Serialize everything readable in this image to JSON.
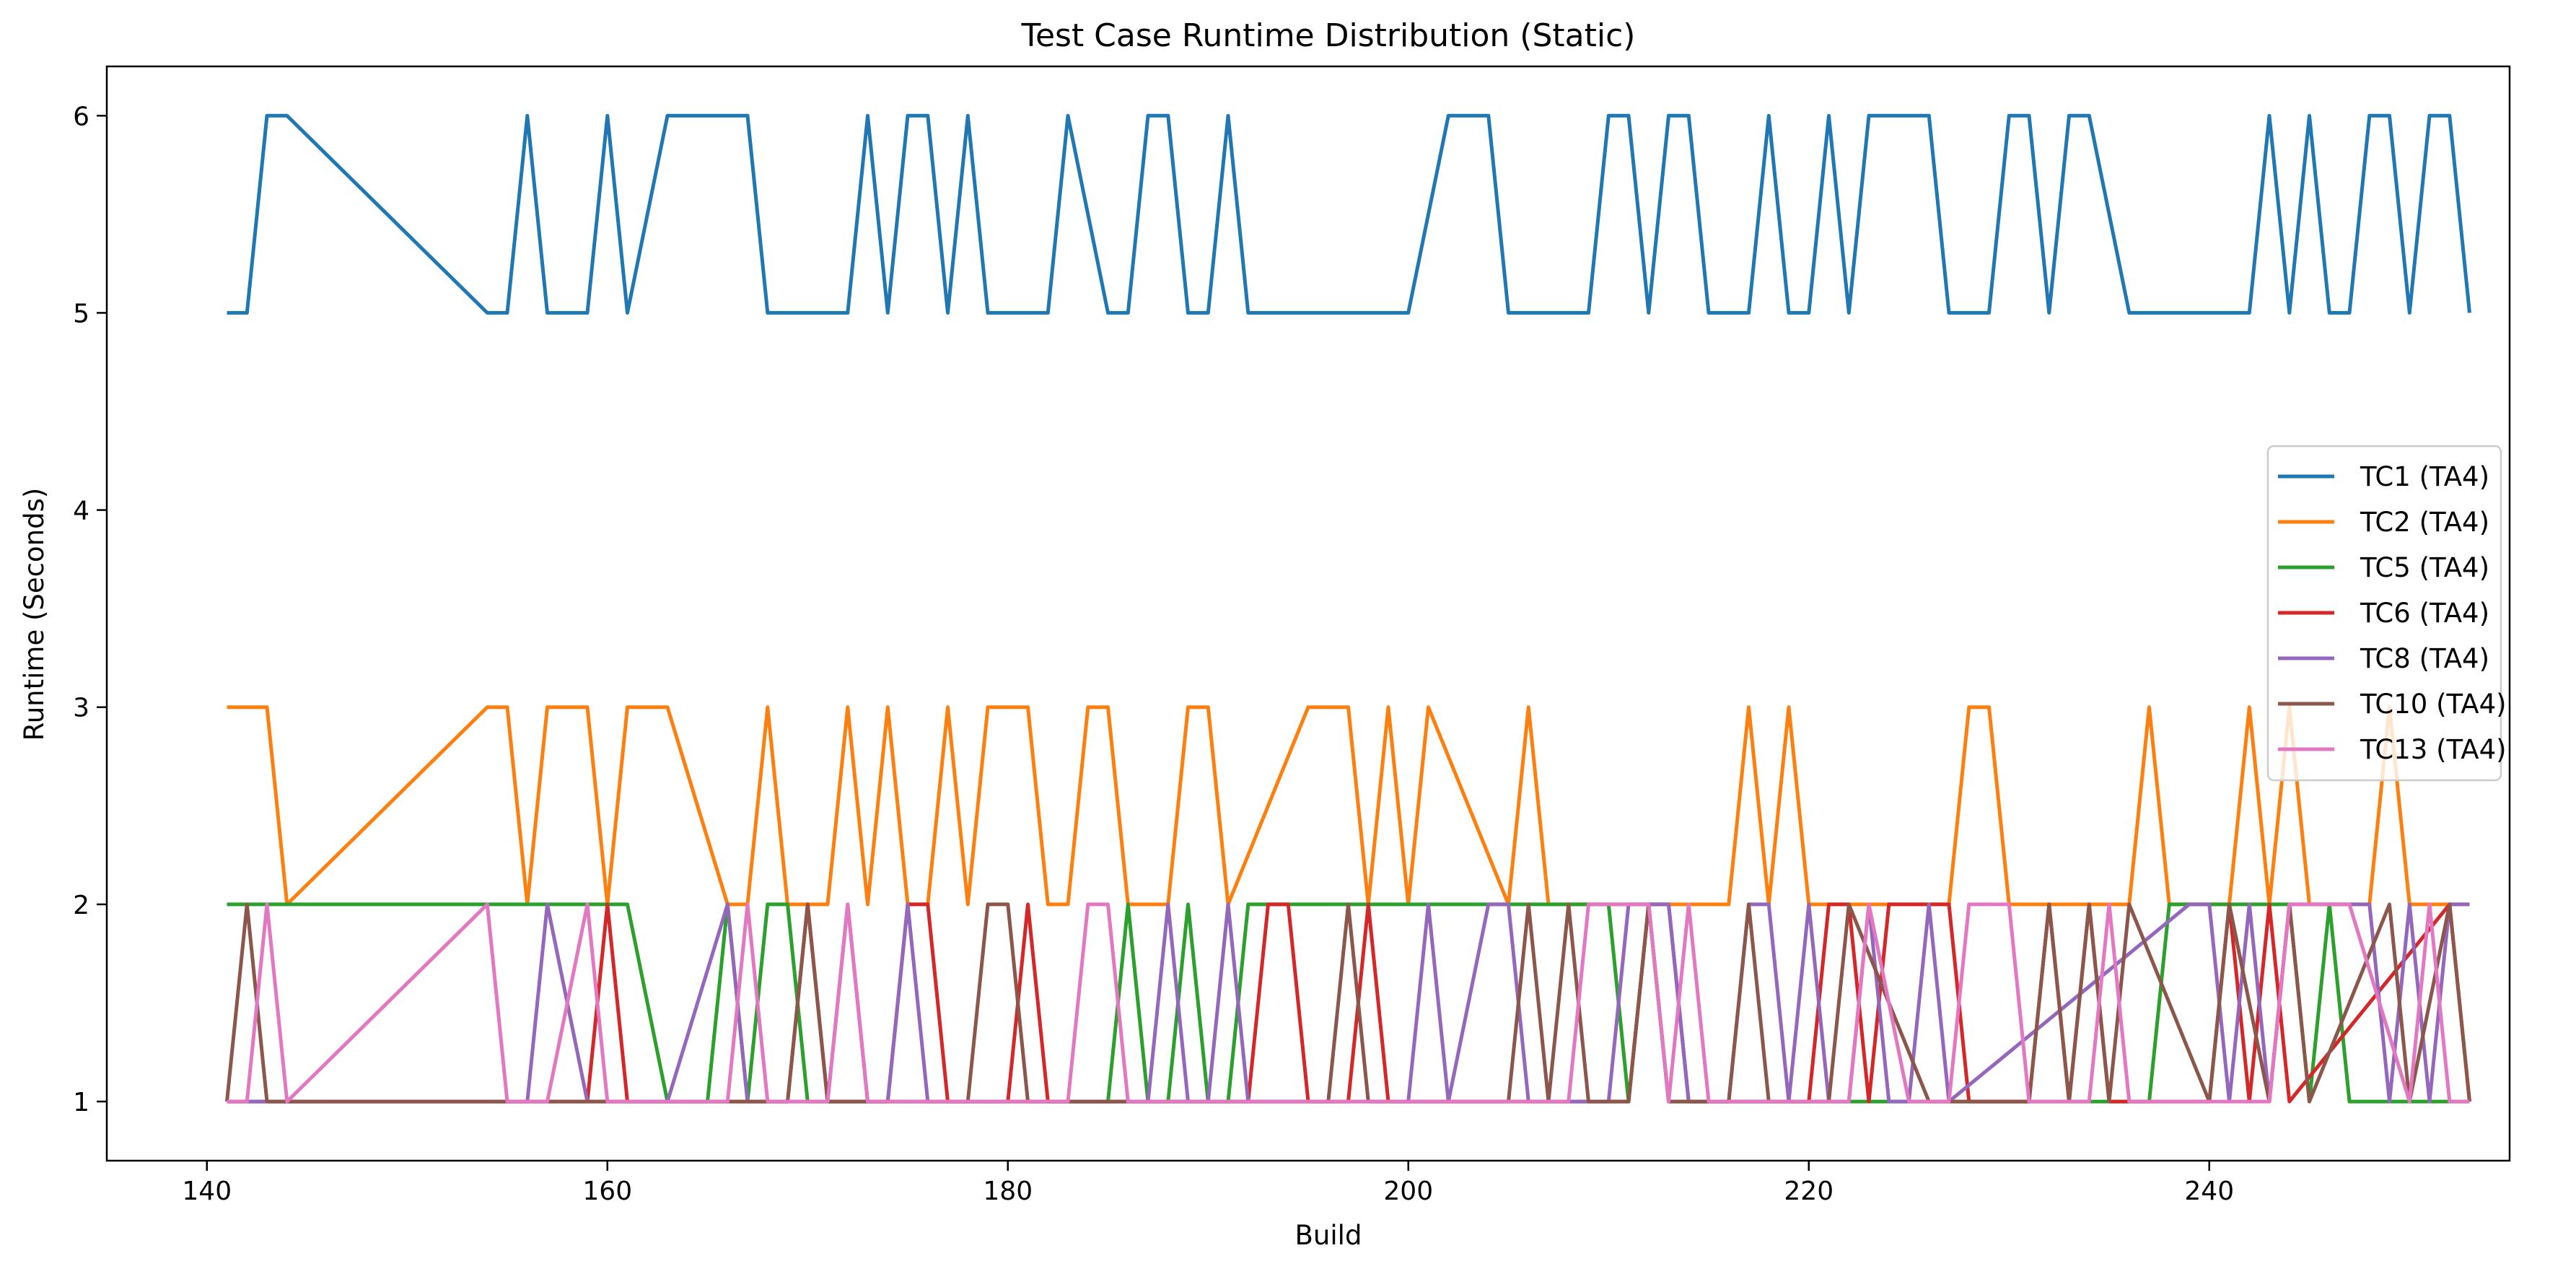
{
  "chart_data": {
    "type": "line",
    "title": "Test Case Runtime Distribution (Static)",
    "xlabel": "Build",
    "ylabel": "Runtime (Seconds)",
    "xlim": [
      135,
      255
    ],
    "ylim": [
      0.7,
      6.25
    ],
    "xticks": [
      140,
      160,
      180,
      200,
      220,
      240
    ],
    "yticks": [
      1,
      2,
      3,
      4,
      5,
      6
    ],
    "grid": false,
    "legend_position": "center-right",
    "series": [
      {
        "name": "TC1 (TA4)",
        "color": "#1f77b4",
        "x": [
          141,
          142,
          143,
          144,
          154,
          155,
          156,
          157,
          159,
          160,
          161,
          163,
          167,
          168,
          172,
          173,
          174,
          175,
          176,
          177,
          178,
          179,
          182,
          183,
          185,
          186,
          187,
          188,
          189,
          190,
          191,
          192,
          200,
          202,
          204,
          205,
          209,
          210,
          211,
          212,
          213,
          214,
          215,
          217,
          218,
          219,
          220,
          221,
          222,
          223,
          226,
          227,
          229,
          230,
          231,
          232,
          233,
          234,
          236,
          237,
          242,
          243,
          244,
          245,
          246,
          247,
          248,
          249,
          250,
          251,
          252,
          253
        ],
        "y": [
          5,
          5,
          6,
          6,
          5,
          5,
          6,
          5,
          5,
          6,
          5,
          6,
          6,
          5,
          5,
          6,
          5,
          6,
          6,
          5,
          6,
          5,
          5,
          6,
          5,
          5,
          6,
          6,
          5,
          5,
          6,
          5,
          5,
          6,
          6,
          5,
          5,
          6,
          6,
          5,
          6,
          6,
          5,
          5,
          6,
          5,
          5,
          6,
          5,
          6,
          6,
          5,
          5,
          6,
          6,
          5,
          6,
          6,
          5,
          5,
          5,
          6,
          5,
          6,
          5,
          5,
          6,
          6,
          5,
          6,
          6,
          5
        ]
      },
      {
        "name": "TC2 (TA4)",
        "color": "#ff7f0e",
        "x": [
          141,
          143,
          144,
          154,
          155,
          156,
          157,
          159,
          160,
          161,
          163,
          166,
          167,
          168,
          169,
          171,
          172,
          173,
          174,
          175,
          176,
          177,
          178,
          179,
          181,
          182,
          183,
          184,
          185,
          186,
          188,
          189,
          190,
          191,
          195,
          197,
          198,
          199,
          200,
          201,
          205,
          206,
          207,
          209,
          210,
          216,
          217,
          218,
          219,
          220,
          221,
          222,
          223,
          225,
          226,
          227,
          228,
          229,
          230,
          236,
          237,
          238,
          241,
          242,
          243,
          244,
          245,
          247,
          248,
          249,
          250,
          253
        ],
        "y": [
          3,
          3,
          2,
          3,
          3,
          2,
          3,
          3,
          2,
          3,
          3,
          2,
          2,
          3,
          2,
          2,
          3,
          2,
          3,
          2,
          2,
          3,
          2,
          3,
          3,
          2,
          2,
          3,
          3,
          2,
          2,
          3,
          3,
          2,
          3,
          3,
          2,
          3,
          2,
          3,
          2,
          3,
          2,
          2,
          2,
          2,
          3,
          2,
          3,
          2,
          2,
          2,
          2,
          2,
          2,
          2,
          3,
          3,
          2,
          2,
          3,
          2,
          2,
          3,
          2,
          3,
          2,
          2,
          2,
          3,
          2,
          2
        ]
      },
      {
        "name": "TC5 (TA4)",
        "color": "#2ca02c",
        "x": [
          141,
          161,
          163,
          164,
          165,
          166,
          167,
          168,
          169,
          170,
          185,
          186,
          187,
          188,
          189,
          190,
          191,
          192,
          210,
          211,
          212,
          213,
          214,
          236,
          237,
          238,
          239,
          240,
          244,
          245,
          246,
          247,
          253
        ],
        "y": [
          2,
          2,
          1,
          1,
          1,
          2,
          1,
          2,
          2,
          1,
          1,
          2,
          1,
          1,
          2,
          1,
          1,
          2,
          2,
          1,
          2,
          1,
          1,
          1,
          1,
          2,
          2,
          2,
          2,
          1,
          2,
          1,
          1
        ]
      },
      {
        "name": "TC6 (TA4)",
        "color": "#d62728",
        "x": [
          141,
          159,
          160,
          161,
          169,
          170,
          171,
          174,
          175,
          176,
          177,
          180,
          181,
          182,
          192,
          193,
          194,
          195,
          197,
          198,
          199,
          200,
          211,
          212,
          213,
          214,
          220,
          221,
          222,
          223,
          224,
          227,
          228,
          229,
          230,
          231,
          232,
          233,
          234,
          235,
          236,
          240,
          241,
          242,
          243,
          244,
          252,
          253
        ],
        "y": [
          1,
          1,
          2,
          1,
          1,
          2,
          1,
          1,
          2,
          2,
          1,
          1,
          2,
          1,
          1,
          2,
          2,
          1,
          1,
          2,
          1,
          1,
          1,
          2,
          2,
          1,
          1,
          2,
          2,
          1,
          2,
          2,
          1,
          1,
          1,
          1,
          2,
          1,
          2,
          1,
          1,
          1,
          2,
          1,
          2,
          1,
          2,
          1
        ]
      },
      {
        "name": "TC8 (TA4)",
        "color": "#9467bd",
        "x": [
          141,
          156,
          157,
          159,
          163,
          166,
          167,
          168,
          171,
          172,
          173,
          174,
          175,
          176,
          177,
          187,
          188,
          189,
          190,
          191,
          192,
          200,
          201,
          202,
          204,
          205,
          206,
          210,
          211,
          212,
          213,
          214,
          215,
          216,
          217,
          218,
          219,
          220,
          221,
          222,
          223,
          224,
          225,
          226,
          227,
          239,
          240,
          241,
          242,
          243,
          244,
          248,
          249,
          250,
          251,
          252,
          253
        ],
        "y": [
          1,
          1,
          2,
          1,
          1,
          2,
          1,
          1,
          1,
          2,
          1,
          1,
          2,
          1,
          1,
          1,
          2,
          1,
          1,
          2,
          1,
          1,
          2,
          1,
          2,
          2,
          1,
          1,
          2,
          2,
          2,
          1,
          1,
          1,
          2,
          2,
          1,
          2,
          1,
          1,
          2,
          1,
          1,
          2,
          1,
          2,
          2,
          1,
          2,
          1,
          2,
          2,
          1,
          2,
          1,
          2,
          2
        ]
      },
      {
        "name": "TC10 (TA4)",
        "color": "#8c564b",
        "x": [
          141,
          142,
          143,
          168,
          169,
          170,
          171,
          178,
          179,
          180,
          181,
          183,
          184,
          192,
          193,
          196,
          197,
          198,
          201,
          202,
          205,
          206,
          207,
          208,
          209,
          210,
          211,
          212,
          213,
          216,
          217,
          218,
          221,
          222,
          226,
          227,
          231,
          232,
          233,
          234,
          235,
          236,
          240,
          241,
          243,
          244,
          245,
          249,
          250,
          252,
          253
        ],
        "y": [
          1,
          2,
          1,
          1,
          1,
          2,
          1,
          1,
          2,
          2,
          1,
          1,
          1,
          1,
          1,
          1,
          2,
          1,
          1,
          1,
          1,
          2,
          1,
          2,
          1,
          1,
          1,
          2,
          1,
          1,
          2,
          1,
          1,
          2,
          1,
          1,
          1,
          2,
          1,
          2,
          1,
          2,
          1,
          2,
          1,
          2,
          1,
          2,
          1,
          2,
          1
        ]
      },
      {
        "name": "TC13 (TA4)",
        "color": "#e377c2",
        "x": [
          141,
          142,
          143,
          144,
          154,
          155,
          157,
          159,
          160,
          166,
          167,
          168,
          171,
          172,
          173,
          178,
          179,
          183,
          184,
          185,
          186,
          196,
          197,
          198,
          201,
          202,
          208,
          209,
          212,
          213,
          214,
          215,
          216,
          217,
          221,
          222,
          223,
          225,
          227,
          228,
          229,
          230,
          231,
          233,
          234,
          235,
          236,
          239,
          240,
          241,
          243,
          244,
          246,
          247,
          250,
          251,
          252,
          253
        ],
        "y": [
          1,
          1,
          2,
          1,
          2,
          1,
          1,
          2,
          1,
          1,
          2,
          1,
          1,
          2,
          1,
          1,
          1,
          1,
          2,
          2,
          1,
          1,
          1,
          1,
          1,
          1,
          1,
          2,
          2,
          1,
          2,
          1,
          1,
          1,
          1,
          1,
          2,
          1,
          1,
          2,
          2,
          2,
          1,
          1,
          1,
          2,
          1,
          1,
          1,
          1,
          1,
          2,
          2,
          2,
          1,
          2,
          1,
          1
        ]
      }
    ]
  }
}
